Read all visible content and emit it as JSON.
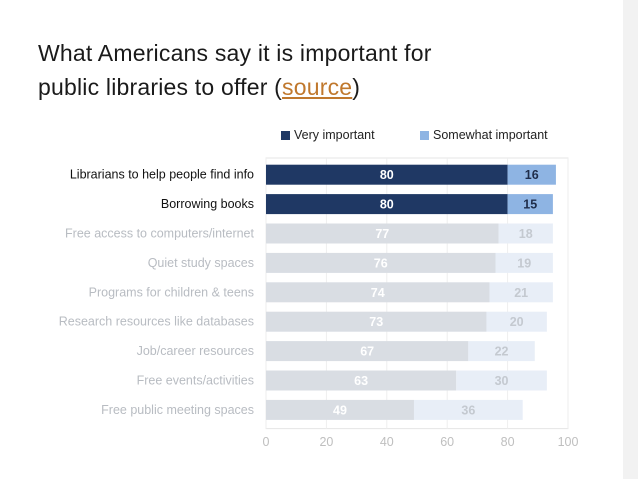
{
  "slide": {
    "title_line1": "What Americans say it is important for",
    "title_line2_prefix": "public libraries to offer (",
    "title_link": "source",
    "title_line2_suffix": ")"
  },
  "colors": {
    "very_important": "#1f3864",
    "somewhat_important": "#8eb4e3",
    "faded_very": "#d9dde3",
    "faded_somewhat": "#e8eef7",
    "faded_text": "#c4c9d0",
    "label_dark": "#111111",
    "label_faded": "#b8bcc2"
  },
  "chart_data": {
    "type": "bar",
    "orientation": "horizontal",
    "stacked": true,
    "title": "What Americans say it is important for public libraries to offer (source)",
    "categories": [
      "Librarians to help people find info",
      "Borrowing books",
      "Free access to computers/internet",
      "Quiet study spaces",
      "Programs for children &  teens",
      "Research resources like databases",
      "Job/career resources",
      "Free events/activities",
      "Free public meeting spaces"
    ],
    "series": [
      {
        "name": "Very important",
        "values": [
          80,
          80,
          77,
          76,
          74,
          73,
          67,
          63,
          49
        ]
      },
      {
        "name": "Somewhat important",
        "values": [
          16,
          15,
          18,
          19,
          21,
          20,
          22,
          30,
          36
        ]
      }
    ],
    "highlighted": [
      true,
      true,
      false,
      false,
      false,
      false,
      false,
      false,
      false
    ],
    "xlim": [
      0,
      100
    ],
    "xticks": [
      "0",
      "20",
      "40",
      "60",
      "80",
      "100"
    ],
    "legend_position": "top",
    "xlabel": "",
    "ylabel": ""
  }
}
